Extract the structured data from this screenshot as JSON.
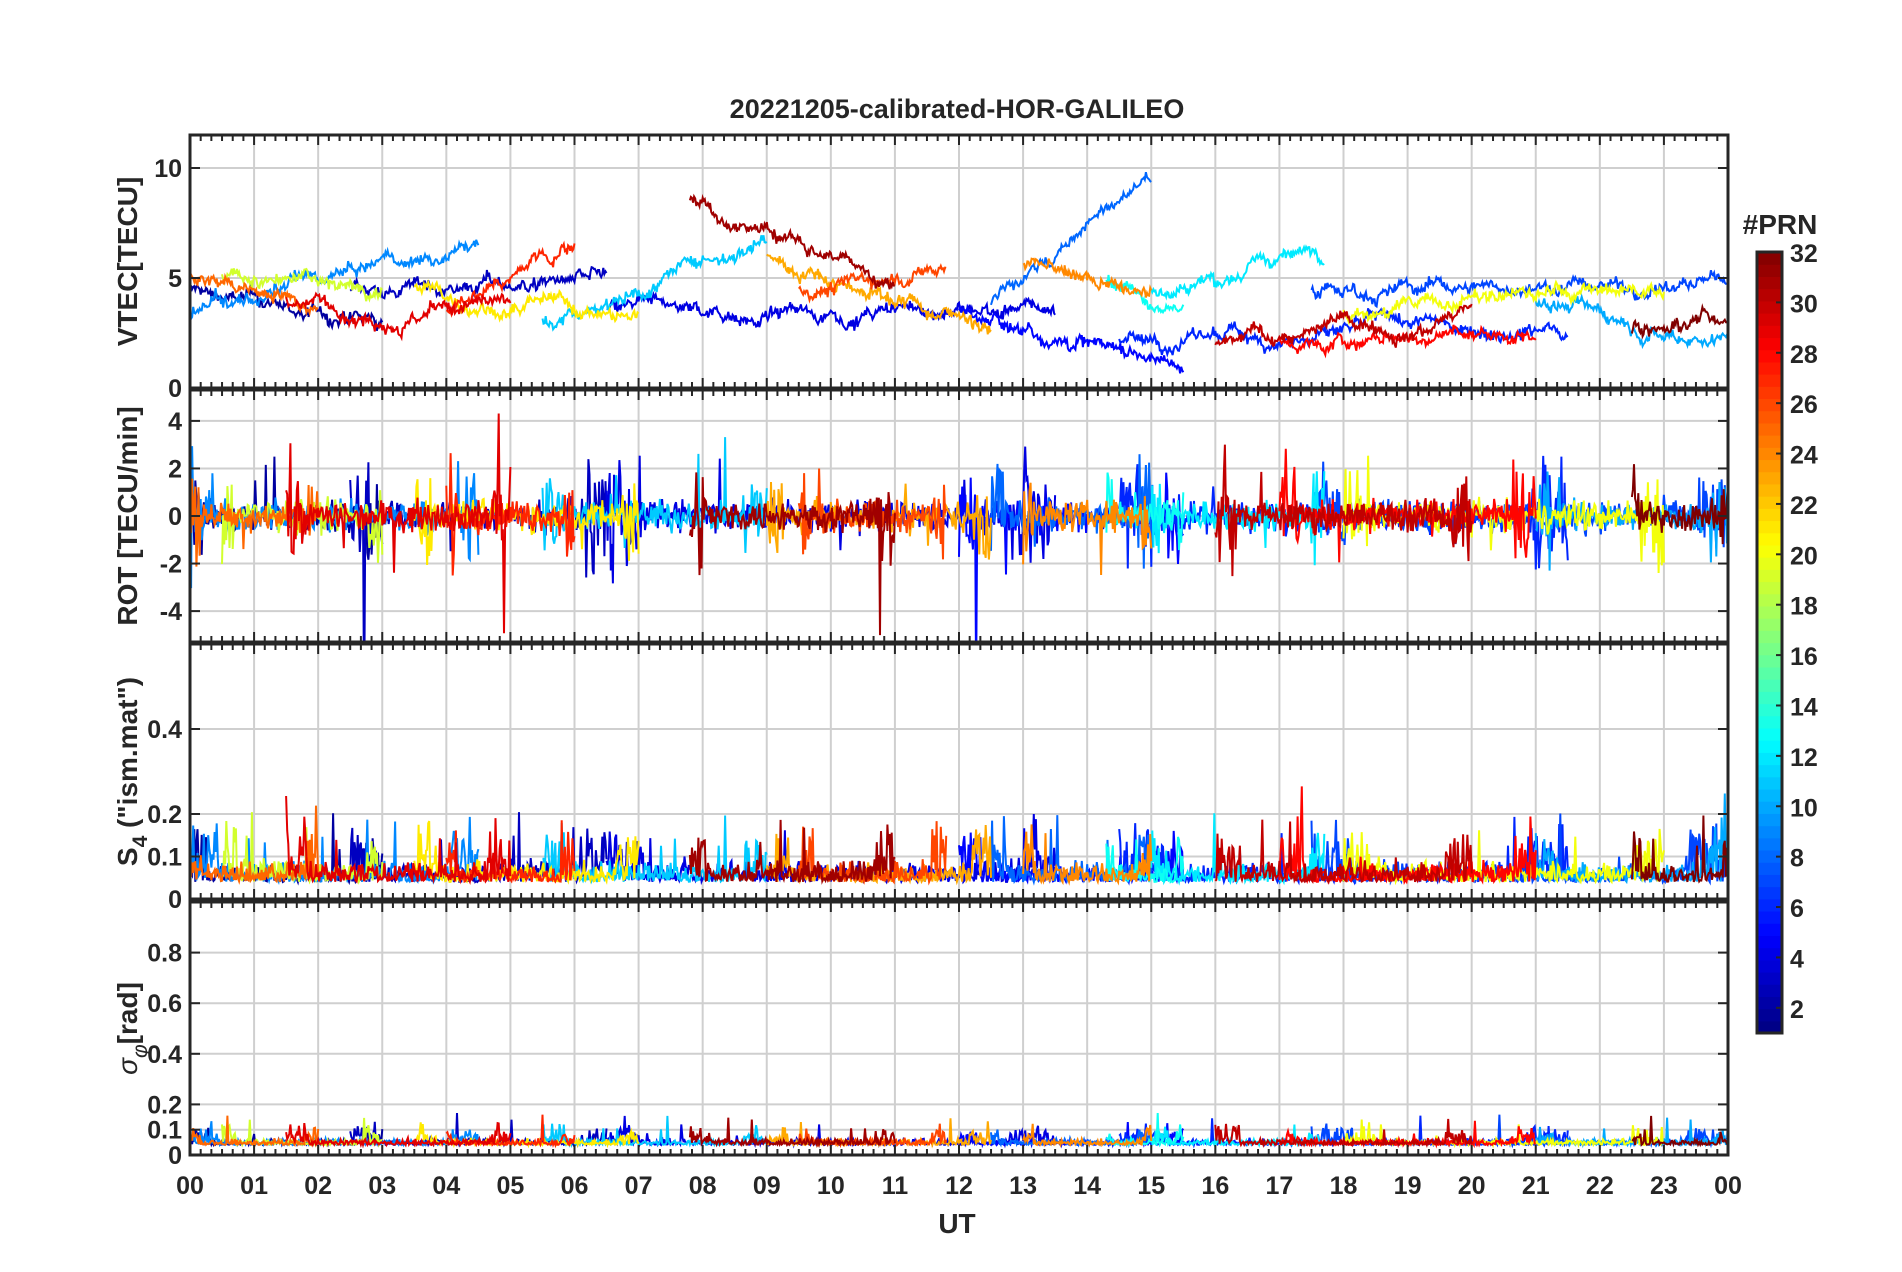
{
  "chart_data": {
    "type": "line",
    "title": "20221205-calibrated-HOR-GALILEO",
    "xlabel": "UT",
    "x_ticks": [
      "00",
      "01",
      "02",
      "03",
      "04",
      "05",
      "06",
      "07",
      "08",
      "09",
      "10",
      "11",
      "12",
      "13",
      "14",
      "15",
      "16",
      "17",
      "18",
      "19",
      "20",
      "21",
      "22",
      "23",
      "00"
    ],
    "xlim_hours": [
      0,
      24
    ],
    "grid": true,
    "colorbar": {
      "title": "#PRN",
      "colormap": "jet",
      "range": [
        1,
        32
      ],
      "ticks": [
        2,
        4,
        6,
        8,
        10,
        12,
        14,
        16,
        18,
        20,
        22,
        24,
        26,
        28,
        30,
        32
      ]
    },
    "panels": [
      {
        "id": "vtec",
        "ylabel": "VTEC[TECU]",
        "ylim": [
          0,
          11.5
        ],
        "yticks": [
          0,
          5,
          10
        ],
        "yticklabels": [
          "0",
          "5",
          "10"
        ],
        "baseline": 4.5
      },
      {
        "id": "rot",
        "ylabel": "ROT [TECU/min]",
        "ylim": [
          -5.3,
          5.3
        ],
        "yticks": [
          -4,
          -2,
          0,
          2,
          4
        ],
        "yticklabels": [
          "-4",
          "-2",
          "0",
          "2",
          "4"
        ],
        "baseline": 0
      },
      {
        "id": "s4",
        "ylabel": "S4 (\"ism.mat\")",
        "ylabel_main": "S",
        "ylabel_sub": "4",
        "ylabel_rest": " (\"ism.mat\")",
        "ylim": [
          0,
          0.6
        ],
        "yticks": [
          0,
          0.1,
          0.2,
          0.4
        ],
        "yticklabels": [
          "0",
          "0.1",
          "0.2",
          "0.4"
        ],
        "baseline": 0.04
      },
      {
        "id": "sigma_phi",
        "ylabel": "σφ[rad]",
        "ylabel_main": "σ",
        "ylabel_sub": "φ",
        "ylabel_rest": "[rad]",
        "ylim": [
          0,
          1.0
        ],
        "yticks": [
          0,
          0.1,
          0.2,
          0.4,
          0.6,
          0.8
        ],
        "yticklabels": [
          "0",
          "0.1",
          "0.2",
          "0.4",
          "0.6",
          "0.8"
        ],
        "baseline": 0.04
      }
    ],
    "series": [
      {
        "prn": 2,
        "pass": [
          0.0,
          3.0
        ],
        "vtec_start": 4.5,
        "vtec_end": 2.7
      },
      {
        "prn": 3,
        "pass": [
          2.5,
          6.5
        ],
        "vtec_start": 4.5,
        "vtec_end": 5.0
      },
      {
        "prn": 4,
        "pass": [
          6.5,
          13.5
        ],
        "vtec_start": 3.5,
        "vtec_end": 3.5
      },
      {
        "prn": 5,
        "pass": [
          12.0,
          15.5
        ],
        "vtec_start": 3.5,
        "vtec_end": 1.2
      },
      {
        "prn": 6,
        "pass": [
          14.5,
          21.5
        ],
        "vtec_start": 2.0,
        "vtec_end": 3.0
      },
      {
        "prn": 7,
        "pass": [
          17.5,
          24.0
        ],
        "vtec_start": 4.5,
        "vtec_end": 4.8
      },
      {
        "prn": 8,
        "pass": [
          12.5,
          15.0
        ],
        "vtec_start": 4.0,
        "vtec_end": 9.5
      },
      {
        "prn": 9,
        "pass": [
          0.0,
          4.5
        ],
        "vtec_start": 3.3,
        "vtec_end": 6.5
      },
      {
        "prn": 10,
        "pass": [
          21.0,
          24.0
        ],
        "vtec_start": 4.0,
        "vtec_end": 2.5
      },
      {
        "prn": 11,
        "pass": [
          5.5,
          9.0
        ],
        "vtec_start": 3.0,
        "vtec_end": 7.0
      },
      {
        "prn": 12,
        "pass": [
          15.0,
          17.7
        ],
        "vtec_start": 4.5,
        "vtec_end": 6.3
      },
      {
        "prn": 13,
        "pass": [
          14.3,
          15.5
        ],
        "vtec_start": 5.0,
        "vtec_end": 4.0
      },
      {
        "prn": 19,
        "pass": [
          0.5,
          3.0
        ],
        "vtec_start": 5.0,
        "vtec_end": 4.5
      },
      {
        "prn": 20,
        "pass": [
          18.0,
          23.0
        ],
        "vtec_start": 3.5,
        "vtec_end": 4.5
      },
      {
        "prn": 21,
        "pass": [
          3.5,
          7.0
        ],
        "vtec_start": 4.5,
        "vtec_end": 3.0
      },
      {
        "prn": 23,
        "pass": [
          9.0,
          12.5
        ],
        "vtec_start": 6.0,
        "vtec_end": 3.0
      },
      {
        "prn": 24,
        "pass": [
          13.0,
          15.0
        ],
        "vtec_start": 5.5,
        "vtec_end": 4.0
      },
      {
        "prn": 25,
        "pass": [
          0.0,
          2.0
        ],
        "vtec_start": 5.0,
        "vtec_end": 4.0
      },
      {
        "prn": 26,
        "pass": [
          9.5,
          11.8
        ],
        "vtec_start": 4.5,
        "vtec_end": 5.5
      },
      {
        "prn": 27,
        "pass": [
          4.0,
          6.0
        ],
        "vtec_start": 3.5,
        "vtec_end": 6.5
      },
      {
        "prn": 28,
        "pass": [
          17.0,
          21.0
        ],
        "vtec_start": 2.0,
        "vtec_end": 2.5
      },
      {
        "prn": 29,
        "pass": [
          1.5,
          5.0
        ],
        "vtec_start": 4.0,
        "vtec_end": 3.5
      },
      {
        "prn": 30,
        "pass": [
          16.0,
          20.0
        ],
        "vtec_start": 2.0,
        "vtec_end": 3.5
      },
      {
        "prn": 31,
        "pass": [
          7.8,
          11.0
        ],
        "vtec_start": 8.5,
        "vtec_end": 5.0
      },
      {
        "prn": 32,
        "pass": [
          22.5,
          24.0
        ],
        "vtec_start": 2.8,
        "vtec_end": 3.5
      }
    ]
  }
}
